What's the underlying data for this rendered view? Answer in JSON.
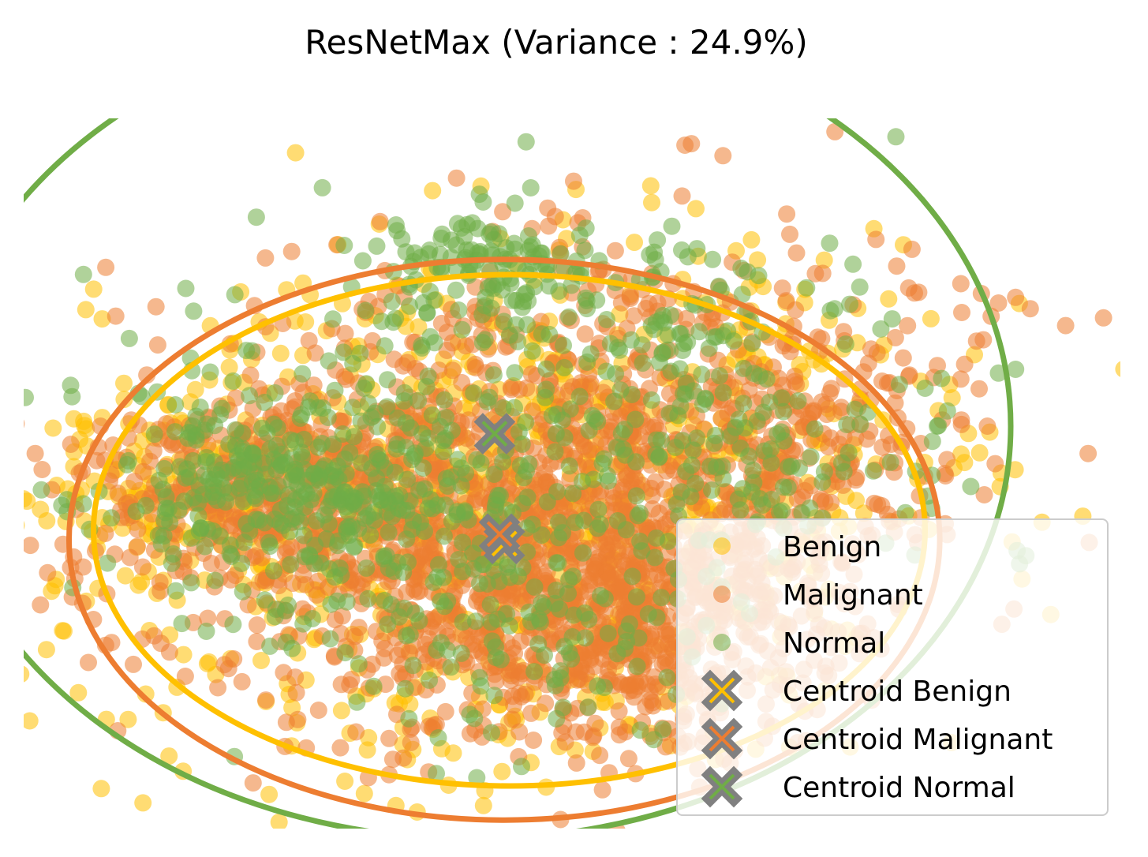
{
  "chart_data": {
    "type": "scatter",
    "title": "ResNetMax (Variance : 24.9%)",
    "xlabel": "",
    "ylabel": "",
    "axes_visible": false,
    "grid": false,
    "legend_position": "lower-right",
    "colors": {
      "Benign": "#FFC000",
      "Malignant": "#ED7D31",
      "Normal": "#70AD47",
      "centroid_outline": "#808080"
    },
    "series": [
      {
        "name": "Benign",
        "kind": "points",
        "color": "#FFC000"
      },
      {
        "name": "Malignant",
        "kind": "points",
        "color": "#ED7D31"
      },
      {
        "name": "Normal",
        "kind": "points",
        "color": "#70AD47"
      },
      {
        "name": "Centroid Benign",
        "kind": "centroid",
        "color": "#FFC000"
      },
      {
        "name": "Centroid Malignant",
        "kind": "centroid",
        "color": "#ED7D31"
      },
      {
        "name": "Centroid Normal",
        "kind": "centroid",
        "color": "#70AD47"
      }
    ],
    "centroids": [
      {
        "name": "Centroid Benign",
        "x": 0.03,
        "y": -0.12
      },
      {
        "name": "Centroid Malignant",
        "x": 0.01,
        "y": -0.07
      },
      {
        "name": "Centroid Normal",
        "x": -0.01,
        "y": 0.46
      }
    ],
    "ellipses": [
      {
        "name": "Benign",
        "cx": 0.05,
        "cy": -0.05,
        "rx": 1.7,
        "ry": 1.35,
        "color": "#FFC000"
      },
      {
        "name": "Malignant",
        "cx": 0.03,
        "cy": -0.1,
        "rx": 1.78,
        "ry": 1.48,
        "color": "#ED7D31"
      },
      {
        "name": "Normal",
        "cx": -0.1,
        "cy": 0.5,
        "rx": 2.2,
        "ry": 2.18,
        "color": "#70AD47"
      }
    ],
    "clusters": [
      {
        "series": "Malignant",
        "cx": 0.0,
        "cy": -0.1,
        "sx": 0.75,
        "sy": 0.5,
        "n": 1100
      },
      {
        "series": "Malignant",
        "cx": 0.55,
        "cy": -0.55,
        "sx": 0.4,
        "sy": 0.35,
        "n": 500
      },
      {
        "series": "Malignant",
        "cx": -1.0,
        "cy": 0.15,
        "sx": 0.35,
        "sy": 0.22,
        "n": 280
      },
      {
        "series": "Malignant",
        "cx": 0.5,
        "cy": 0.75,
        "sx": 0.7,
        "sy": 0.45,
        "n": 350
      },
      {
        "series": "Malignant",
        "cx": 1.25,
        "cy": 0.5,
        "sx": 0.28,
        "sy": 0.35,
        "n": 130
      },
      {
        "series": "Benign",
        "cx": 0.0,
        "cy": -0.05,
        "sx": 0.85,
        "sy": 0.6,
        "n": 650
      },
      {
        "series": "Benign",
        "cx": 0.4,
        "cy": 0.55,
        "sx": 0.8,
        "sy": 0.5,
        "n": 240
      },
      {
        "series": "Benign",
        "cx": -1.35,
        "cy": 0.15,
        "sx": 0.3,
        "sy": 0.22,
        "n": 130
      },
      {
        "series": "Normal",
        "cx": -0.85,
        "cy": 0.15,
        "sx": 0.35,
        "sy": 0.25,
        "n": 280
      },
      {
        "series": "Normal",
        "cx": 0.0,
        "cy": 0.45,
        "sx": 0.8,
        "sy": 0.55,
        "n": 280
      },
      {
        "series": "Normal",
        "cx": -0.05,
        "cy": 1.35,
        "sx": 0.22,
        "sy": 0.15,
        "n": 110
      },
      {
        "series": "Normal",
        "cx": 0.65,
        "cy": 1.0,
        "sx": 0.35,
        "sy": 0.2,
        "n": 80
      },
      {
        "series": "Normal",
        "cx": 0.1,
        "cy": -0.55,
        "sx": 0.5,
        "sy": 0.3,
        "n": 140
      },
      {
        "series": "Normal",
        "cx": 1.05,
        "cy": 0.3,
        "sx": 0.4,
        "sy": 0.25,
        "n": 80
      }
    ],
    "outliers": [
      {
        "series": "Malignant",
        "x": 1.98,
        "y": 1.2
      },
      {
        "series": "Malignant",
        "x": 2.05,
        "y": 1.15
      },
      {
        "series": "Malignant",
        "x": 2.12,
        "y": 1.18
      },
      {
        "series": "Malignant",
        "x": 2.18,
        "y": 1.12
      },
      {
        "series": "Malignant",
        "x": 1.9,
        "y": 1.1
      },
      {
        "series": "Malignant",
        "x": 2.02,
        "y": 1.08
      },
      {
        "series": "Malignant",
        "x": 0.35,
        "y": 1.6
      },
      {
        "series": "Malignant",
        "x": 1.8,
        "y": 0.82
      },
      {
        "series": "Malignant",
        "x": 1.6,
        "y": 0.45
      },
      {
        "series": "Benign",
        "x": 1.85,
        "y": 0.72
      },
      {
        "series": "Benign",
        "x": 1.55,
        "y": 0.3
      },
      {
        "series": "Benign",
        "x": 1.72,
        "y": 0.22
      },
      {
        "series": "Benign",
        "x": 1.48,
        "y": 0.62
      },
      {
        "series": "Normal",
        "x": 2.12,
        "y": 0.8
      },
      {
        "series": "Normal",
        "x": 2.05,
        "y": 0.78
      },
      {
        "series": "Normal",
        "x": 1.75,
        "y": 0.7
      },
      {
        "series": "Normal",
        "x": 1.8,
        "y": 0.5
      },
      {
        "series": "Normal",
        "x": 1.78,
        "y": 0.42
      }
    ]
  }
}
